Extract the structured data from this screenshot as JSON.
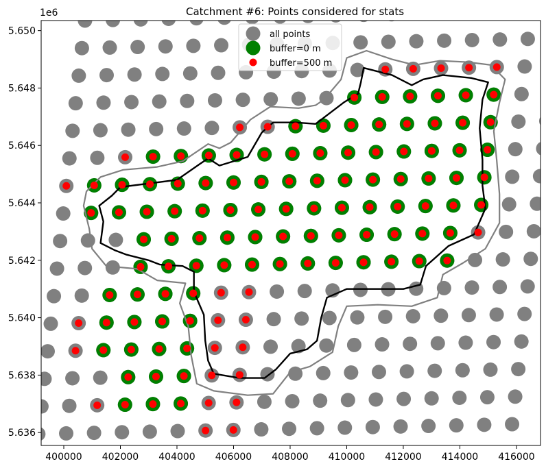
{
  "chart_data": {
    "type": "scatter",
    "title": "Catchment #6: Points considered for stats",
    "xlabel": "",
    "ylabel": "",
    "y_offset_label": "1e6",
    "xlim": [
      399200,
      416850
    ],
    "ylim": [
      5635550,
      5650350
    ],
    "x_ticks": [
      400000,
      402000,
      404000,
      406000,
      408000,
      410000,
      412000,
      414000,
      416000
    ],
    "x_tick_labels": [
      "400000",
      "402000",
      "404000",
      "406000",
      "408000",
      "410000",
      "412000",
      "414000",
      "416000"
    ],
    "y_ticks": [
      5636000,
      5638000,
      5640000,
      5642000,
      5644000,
      5646000,
      5648000,
      5650000
    ],
    "y_tick_labels": [
      "5.636",
      "5.638",
      "5.640",
      "5.642",
      "5.644",
      "5.646",
      "5.648",
      "5.650"
    ],
    "legend_position": "top-center",
    "grid_origin": {
      "x": 399100,
      "y": 5635950
    },
    "grid_step": {
      "col_dx": 985,
      "col_dy": 20,
      "row_dx": 110,
      "row_dy": 960
    },
    "grid_size": {
      "cols": 18,
      "rows": 16
    },
    "series": [
      {
        "name": "all points",
        "color": "#808080",
        "marker": "large-circle"
      },
      {
        "name": "buffer=0 m",
        "color": "#008000",
        "marker": "large-circle"
      },
      {
        "name": "buffer=500 m",
        "color": "#ff0000",
        "marker": "small-circle"
      }
    ],
    "buffer0_cells": [
      [
        1,
        3
      ],
      [
        1,
        4
      ],
      [
        1,
        5
      ],
      [
        2,
        3
      ],
      [
        2,
        4
      ],
      [
        2,
        5
      ],
      [
        3,
        2
      ],
      [
        3,
        3
      ],
      [
        3,
        4
      ],
      [
        3,
        5
      ],
      [
        4,
        2
      ],
      [
        4,
        3
      ],
      [
        4,
        4
      ],
      [
        4,
        5
      ],
      [
        5,
        2
      ],
      [
        5,
        3
      ],
      [
        5,
        4
      ],
      [
        5,
        5
      ],
      [
        6,
        3
      ],
      [
        6,
        4
      ],
      [
        6,
        5
      ],
      [
        6,
        6
      ],
      [
        6,
        7
      ],
      [
        6,
        8
      ],
      [
        6,
        9
      ],
      [
        6,
        10
      ],
      [
        6,
        11
      ],
      [
        6,
        12
      ],
      [
        6,
        13
      ],
      [
        6,
        14
      ],
      [
        7,
        3
      ],
      [
        7,
        4
      ],
      [
        7,
        5
      ],
      [
        7,
        6
      ],
      [
        7,
        7
      ],
      [
        7,
        8
      ],
      [
        7,
        9
      ],
      [
        7,
        10
      ],
      [
        7,
        11
      ],
      [
        7,
        12
      ],
      [
        7,
        13
      ],
      [
        7,
        14
      ],
      [
        8,
        1
      ],
      [
        8,
        2
      ],
      [
        8,
        3
      ],
      [
        8,
        4
      ],
      [
        8,
        5
      ],
      [
        8,
        6
      ],
      [
        8,
        7
      ],
      [
        8,
        8
      ],
      [
        8,
        9
      ],
      [
        8,
        10
      ],
      [
        8,
        11
      ],
      [
        8,
        12
      ],
      [
        8,
        13
      ],
      [
        8,
        14
      ],
      [
        8,
        15
      ],
      [
        9,
        1
      ],
      [
        9,
        2
      ],
      [
        9,
        3
      ],
      [
        9,
        4
      ],
      [
        9,
        5
      ],
      [
        9,
        6
      ],
      [
        9,
        7
      ],
      [
        9,
        8
      ],
      [
        9,
        9
      ],
      [
        9,
        10
      ],
      [
        9,
        11
      ],
      [
        9,
        12
      ],
      [
        9,
        13
      ],
      [
        9,
        14
      ],
      [
        9,
        15
      ],
      [
        10,
        3
      ],
      [
        10,
        4
      ],
      [
        10,
        5
      ],
      [
        10,
        6
      ],
      [
        10,
        7
      ],
      [
        10,
        8
      ],
      [
        10,
        9
      ],
      [
        10,
        10
      ],
      [
        10,
        11
      ],
      [
        10,
        12
      ],
      [
        10,
        13
      ],
      [
        10,
        14
      ],
      [
        10,
        15
      ],
      [
        11,
        8
      ],
      [
        11,
        9
      ],
      [
        11,
        10
      ],
      [
        11,
        11
      ],
      [
        11,
        12
      ],
      [
        11,
        13
      ],
      [
        11,
        14
      ],
      [
        11,
        15
      ],
      [
        12,
        10
      ],
      [
        12,
        11
      ],
      [
        12,
        12
      ],
      [
        12,
        13
      ],
      [
        12,
        14
      ],
      [
        12,
        15
      ]
    ],
    "buffer500_cells": [
      [
        0,
        6
      ],
      [
        0,
        7
      ],
      [
        1,
        2
      ],
      [
        1,
        3
      ],
      [
        1,
        4
      ],
      [
        1,
        5
      ],
      [
        1,
        6
      ],
      [
        1,
        7
      ],
      [
        2,
        3
      ],
      [
        2,
        4
      ],
      [
        2,
        5
      ],
      [
        2,
        6
      ],
      [
        2,
        7
      ],
      [
        3,
        1
      ],
      [
        3,
        2
      ],
      [
        3,
        3
      ],
      [
        3,
        4
      ],
      [
        3,
        5
      ],
      [
        3,
        6
      ],
      [
        3,
        7
      ],
      [
        4,
        1
      ],
      [
        4,
        2
      ],
      [
        4,
        3
      ],
      [
        4,
        4
      ],
      [
        4,
        5
      ],
      [
        4,
        6
      ],
      [
        4,
        7
      ],
      [
        5,
        2
      ],
      [
        5,
        3
      ],
      [
        5,
        4
      ],
      [
        5,
        5
      ],
      [
        5,
        6
      ],
      [
        5,
        7
      ],
      [
        6,
        3
      ],
      [
        6,
        4
      ],
      [
        6,
        5
      ],
      [
        6,
        6
      ],
      [
        6,
        7
      ],
      [
        6,
        8
      ],
      [
        6,
        9
      ],
      [
        6,
        10
      ],
      [
        6,
        11
      ],
      [
        6,
        12
      ],
      [
        6,
        13
      ],
      [
        6,
        14
      ],
      [
        7,
        3
      ],
      [
        7,
        4
      ],
      [
        7,
        5
      ],
      [
        7,
        6
      ],
      [
        7,
        7
      ],
      [
        7,
        8
      ],
      [
        7,
        9
      ],
      [
        7,
        10
      ],
      [
        7,
        11
      ],
      [
        7,
        12
      ],
      [
        7,
        13
      ],
      [
        7,
        14
      ],
      [
        7,
        15
      ],
      [
        8,
        1
      ],
      [
        8,
        2
      ],
      [
        8,
        3
      ],
      [
        8,
        4
      ],
      [
        8,
        5
      ],
      [
        8,
        6
      ],
      [
        8,
        7
      ],
      [
        8,
        8
      ],
      [
        8,
        9
      ],
      [
        8,
        10
      ],
      [
        8,
        11
      ],
      [
        8,
        12
      ],
      [
        8,
        13
      ],
      [
        8,
        14
      ],
      [
        8,
        15
      ],
      [
        9,
        0
      ],
      [
        9,
        1
      ],
      [
        9,
        2
      ],
      [
        9,
        3
      ],
      [
        9,
        4
      ],
      [
        9,
        5
      ],
      [
        9,
        6
      ],
      [
        9,
        7
      ],
      [
        9,
        8
      ],
      [
        9,
        9
      ],
      [
        9,
        10
      ],
      [
        9,
        11
      ],
      [
        9,
        12
      ],
      [
        9,
        13
      ],
      [
        9,
        14
      ],
      [
        9,
        15
      ],
      [
        10,
        2
      ],
      [
        10,
        3
      ],
      [
        10,
        4
      ],
      [
        10,
        5
      ],
      [
        10,
        6
      ],
      [
        10,
        7
      ],
      [
        10,
        8
      ],
      [
        10,
        9
      ],
      [
        10,
        10
      ],
      [
        10,
        11
      ],
      [
        10,
        12
      ],
      [
        10,
        13
      ],
      [
        10,
        14
      ],
      [
        10,
        15
      ],
      [
        11,
        6
      ],
      [
        11,
        7
      ],
      [
        11,
        8
      ],
      [
        11,
        9
      ],
      [
        11,
        10
      ],
      [
        11,
        11
      ],
      [
        11,
        12
      ],
      [
        11,
        13
      ],
      [
        11,
        14
      ],
      [
        11,
        15
      ],
      [
        12,
        10
      ],
      [
        12,
        11
      ],
      [
        12,
        12
      ],
      [
        12,
        13
      ],
      [
        12,
        14
      ],
      [
        12,
        15
      ],
      [
        13,
        11
      ],
      [
        13,
        12
      ],
      [
        13,
        13
      ],
      [
        13,
        14
      ],
      [
        13,
        15
      ]
    ],
    "catchment_boundary": [
      [
        401250,
        5643900
      ],
      [
        401400,
        5643350
      ],
      [
        401300,
        5642600
      ],
      [
        401800,
        5642350
      ],
      [
        402200,
        5642200
      ],
      [
        403000,
        5642000
      ],
      [
        403400,
        5641850
      ],
      [
        404200,
        5641800
      ],
      [
        404600,
        5641600
      ],
      [
        404600,
        5640900
      ],
      [
        404950,
        5640100
      ],
      [
        405000,
        5639200
      ],
      [
        405100,
        5638500
      ],
      [
        405300,
        5638050
      ],
      [
        406200,
        5637900
      ],
      [
        407100,
        5637900
      ],
      [
        407500,
        5638200
      ],
      [
        408000,
        5638750
      ],
      [
        408600,
        5638900
      ],
      [
        408950,
        5639200
      ],
      [
        409100,
        5640000
      ],
      [
        409300,
        5640700
      ],
      [
        410000,
        5641000
      ],
      [
        411000,
        5641000
      ],
      [
        412000,
        5641000
      ],
      [
        412600,
        5641150
      ],
      [
        412800,
        5641800
      ],
      [
        413600,
        5642500
      ],
      [
        414500,
        5642900
      ],
      [
        414900,
        5643800
      ],
      [
        414800,
        5644600
      ],
      [
        414800,
        5645500
      ],
      [
        414700,
        5646600
      ],
      [
        414800,
        5647600
      ],
      [
        415000,
        5648200
      ],
      [
        414400,
        5648350
      ],
      [
        413400,
        5648450
      ],
      [
        412700,
        5648300
      ],
      [
        412300,
        5648100
      ],
      [
        411600,
        5648450
      ],
      [
        410600,
        5648700
      ],
      [
        410500,
        5648200
      ],
      [
        410400,
        5647800
      ],
      [
        409900,
        5647500
      ],
      [
        408900,
        5646750
      ],
      [
        408200,
        5646800
      ],
      [
        407400,
        5646800
      ],
      [
        407000,
        5646450
      ],
      [
        406500,
        5645600
      ],
      [
        405500,
        5645300
      ],
      [
        405100,
        5645550
      ],
      [
        404800,
        5645350
      ],
      [
        404000,
        5644800
      ],
      [
        403200,
        5644700
      ],
      [
        402000,
        5644550
      ],
      [
        401700,
        5644250
      ],
      [
        401250,
        5643900
      ]
    ],
    "buffer500_boundary": [
      [
        400700,
        5643900
      ],
      [
        400900,
        5643100
      ],
      [
        401000,
        5642400
      ],
      [
        401500,
        5641800
      ],
      [
        402600,
        5641700
      ],
      [
        403300,
        5641300
      ],
      [
        404300,
        5641200
      ],
      [
        404100,
        5640500
      ],
      [
        404400,
        5639700
      ],
      [
        404500,
        5638700
      ],
      [
        404700,
        5637700
      ],
      [
        405300,
        5637450
      ],
      [
        406500,
        5637300
      ],
      [
        407400,
        5637350
      ],
      [
        408000,
        5638100
      ],
      [
        408700,
        5638300
      ],
      [
        409500,
        5638800
      ],
      [
        409700,
        5639700
      ],
      [
        410000,
        5640400
      ],
      [
        411100,
        5640450
      ],
      [
        412300,
        5640400
      ],
      [
        413200,
        5640700
      ],
      [
        413400,
        5641500
      ],
      [
        414100,
        5641900
      ],
      [
        414900,
        5642400
      ],
      [
        415400,
        5643300
      ],
      [
        415400,
        5644300
      ],
      [
        415300,
        5645500
      ],
      [
        415200,
        5646500
      ],
      [
        415400,
        5647500
      ],
      [
        415600,
        5648300
      ],
      [
        415100,
        5648800
      ],
      [
        414300,
        5648900
      ],
      [
        413300,
        5648950
      ],
      [
        412400,
        5648800
      ],
      [
        411600,
        5649000
      ],
      [
        410700,
        5649300
      ],
      [
        410000,
        5649050
      ],
      [
        409800,
        5648300
      ],
      [
        409200,
        5647600
      ],
      [
        408900,
        5647400
      ],
      [
        408300,
        5647300
      ],
      [
        407300,
        5647350
      ],
      [
        406600,
        5646900
      ],
      [
        405900,
        5646100
      ],
      [
        405500,
        5645900
      ],
      [
        405100,
        5646050
      ],
      [
        404200,
        5645450
      ],
      [
        403300,
        5645250
      ],
      [
        402100,
        5645150
      ],
      [
        401300,
        5644900
      ],
      [
        400800,
        5644400
      ],
      [
        400700,
        5643900
      ]
    ]
  }
}
